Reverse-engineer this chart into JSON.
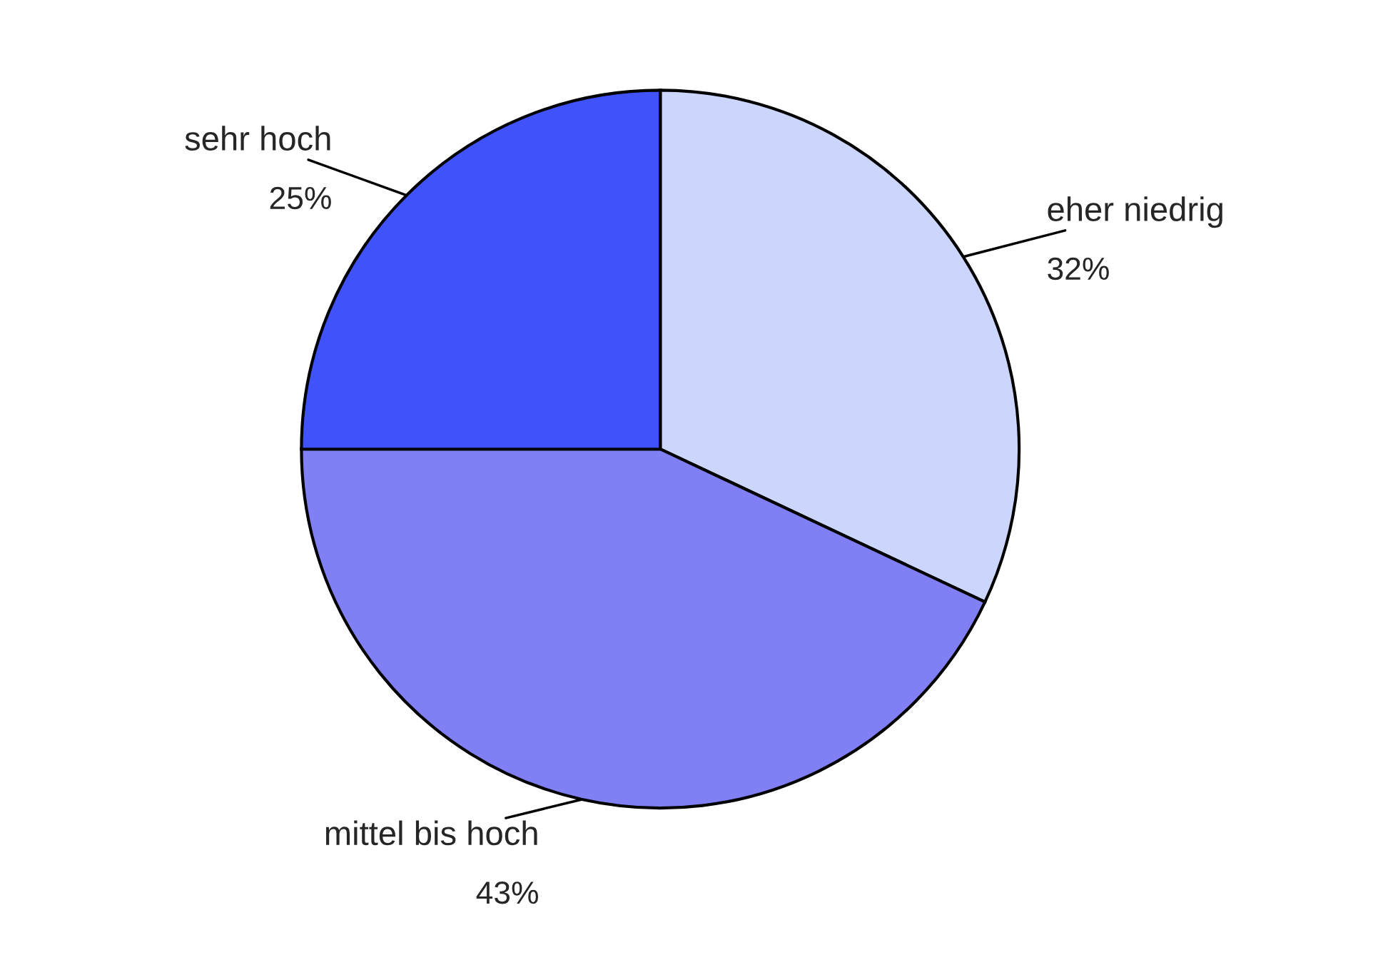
{
  "chart_data": {
    "type": "pie",
    "categories": [
      "eher niedrig",
      "mittel bis hoch",
      "sehr hoch"
    ],
    "values": [
      32,
      43,
      25
    ],
    "value_labels": [
      "32%",
      "43%",
      "25%"
    ],
    "colors": [
      "#ccd6fc",
      "#8080f4",
      "#4052fa"
    ],
    "legend": false
  }
}
